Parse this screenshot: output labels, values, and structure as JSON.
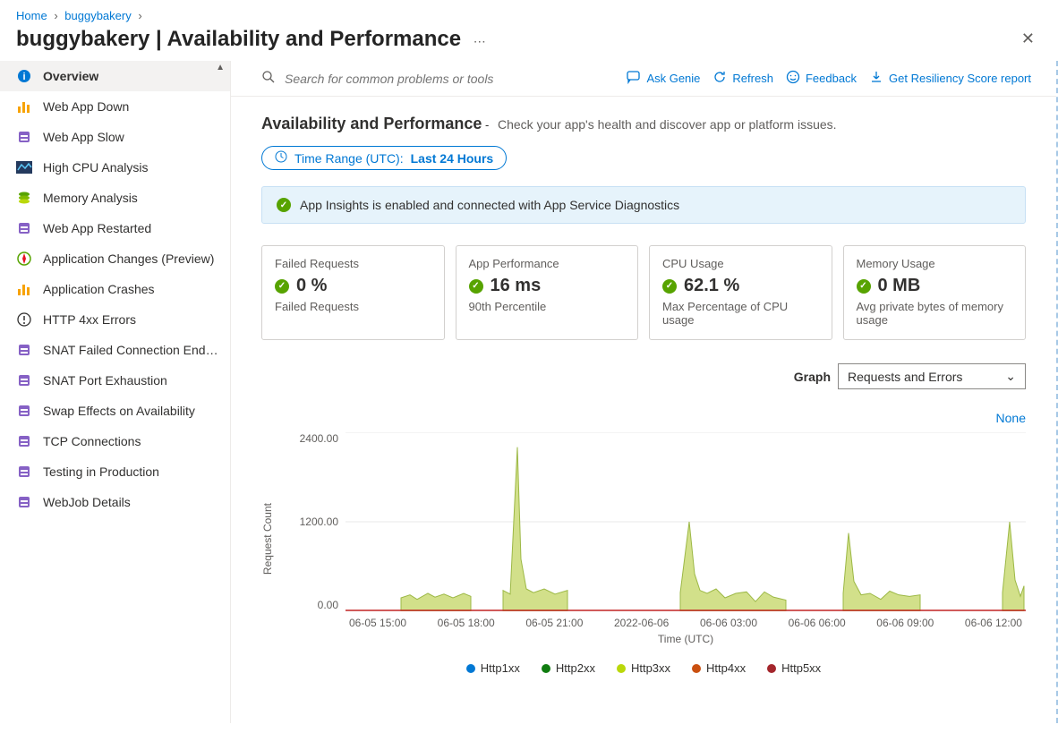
{
  "breadcrumb": [
    {
      "label": "Home",
      "href": true
    },
    {
      "label": "buggybakery",
      "href": true
    }
  ],
  "page_title": "buggybakery | Availability and Performance",
  "search": {
    "placeholder": "Search for common problems or tools"
  },
  "toolbar_actions": [
    {
      "label": "Ask Genie",
      "icon": "chat"
    },
    {
      "label": "Refresh",
      "icon": "refresh"
    },
    {
      "label": "Feedback",
      "icon": "smile"
    },
    {
      "label": "Get Resiliency Score report",
      "icon": "download"
    }
  ],
  "sidebar": [
    {
      "label": "Overview",
      "icon": "info",
      "selected": true
    },
    {
      "label": "Web App Down",
      "icon": "bars-orange"
    },
    {
      "label": "Web App Slow",
      "icon": "block-purple"
    },
    {
      "label": "High CPU Analysis",
      "icon": "sparkline"
    },
    {
      "label": "Memory Analysis",
      "icon": "disks"
    },
    {
      "label": "Web App Restarted",
      "icon": "block-purple"
    },
    {
      "label": "Application Changes (Preview)",
      "icon": "compass"
    },
    {
      "label": "Application Crashes",
      "icon": "bars-orange"
    },
    {
      "label": "HTTP 4xx Errors",
      "icon": "warn-circle"
    },
    {
      "label": "SNAT Failed Connection Endp…",
      "icon": "block-purple"
    },
    {
      "label": "SNAT Port Exhaustion",
      "icon": "block-purple"
    },
    {
      "label": "Swap Effects on Availability",
      "icon": "block-purple"
    },
    {
      "label": "TCP Connections",
      "icon": "block-purple"
    },
    {
      "label": "Testing in Production",
      "icon": "block-purple"
    },
    {
      "label": "WebJob Details",
      "icon": "block-purple"
    }
  ],
  "section": {
    "title": "Availability and Performance",
    "subtitle": "Check your app's health and discover app or platform issues."
  },
  "time_range": {
    "prefix": "Time Range (UTC):",
    "value": "Last 24 Hours"
  },
  "banner": {
    "text": "App Insights is enabled and connected with App Service Diagnostics"
  },
  "cards": [
    {
      "title": "Failed Requests",
      "value": "0 %",
      "sub": "Failed Requests"
    },
    {
      "title": "App Performance",
      "value": "16 ms",
      "sub": "90th Percentile"
    },
    {
      "title": "CPU Usage",
      "value": "62.1 %",
      "sub": "Max Percentage of CPU usage"
    },
    {
      "title": "Memory Usage",
      "value": "0 MB",
      "sub": "Avg private bytes of memory usage"
    }
  ],
  "graph_selector": {
    "label": "Graph",
    "value": "Requests and Errors"
  },
  "none_label": "None",
  "chart": {
    "type": "area",
    "y_label": "Request Count",
    "x_label": "Time (UTC)",
    "y_ticks": [
      "2400.00",
      "1200.00",
      "0.00"
    ],
    "ylim": [
      0,
      2400
    ],
    "x_ticks": [
      "06-05 15:00",
      "06-05 18:00",
      "06-05 21:00",
      "2022-06-06",
      "06-06 03:00",
      "06-06 06:00",
      "06-06 09:00",
      "06-06 12:00"
    ],
    "fill_color": "#d2e08a",
    "stroke_color": "#9cb845",
    "baseline_color": "#c62828",
    "grid_color": "#e8e8e8",
    "background": "#ffffff",
    "series_points": [
      [
        62,
        0
      ],
      [
        62,
        180
      ],
      [
        72,
        220
      ],
      [
        80,
        160
      ],
      [
        92,
        240
      ],
      [
        100,
        190
      ],
      [
        110,
        230
      ],
      [
        120,
        180
      ],
      [
        132,
        240
      ],
      [
        140,
        200
      ],
      [
        158,
        0
      ],
      [
        176,
        0
      ],
      [
        176,
        280
      ],
      [
        184,
        230
      ],
      [
        192,
        2200
      ],
      [
        196,
        700
      ],
      [
        202,
        300
      ],
      [
        210,
        250
      ],
      [
        222,
        300
      ],
      [
        234,
        230
      ],
      [
        248,
        280
      ],
      [
        258,
        0
      ],
      [
        374,
        0
      ],
      [
        374,
        250
      ],
      [
        384,
        1200
      ],
      [
        390,
        500
      ],
      [
        396,
        280
      ],
      [
        404,
        240
      ],
      [
        414,
        300
      ],
      [
        424,
        180
      ],
      [
        436,
        240
      ],
      [
        448,
        260
      ],
      [
        458,
        130
      ],
      [
        468,
        260
      ],
      [
        478,
        190
      ],
      [
        492,
        150
      ],
      [
        556,
        0
      ],
      [
        556,
        240
      ],
      [
        562,
        1050
      ],
      [
        568,
        400
      ],
      [
        576,
        220
      ],
      [
        586,
        240
      ],
      [
        598,
        160
      ],
      [
        608,
        270
      ],
      [
        618,
        220
      ],
      [
        630,
        200
      ],
      [
        642,
        220
      ],
      [
        652,
        0
      ],
      [
        734,
        0
      ],
      [
        734,
        250
      ],
      [
        742,
        1200
      ],
      [
        748,
        420
      ],
      [
        754,
        200
      ],
      [
        758,
        340
      ]
    ]
  },
  "legend": [
    {
      "label": "Http1xx",
      "color": "#0078d4"
    },
    {
      "label": "Http2xx",
      "color": "#107c10"
    },
    {
      "label": "Http3xx",
      "color": "#bad80a"
    },
    {
      "label": "Http4xx",
      "color": "#ca5010"
    },
    {
      "label": "Http5xx",
      "color": "#a4262c"
    }
  ]
}
